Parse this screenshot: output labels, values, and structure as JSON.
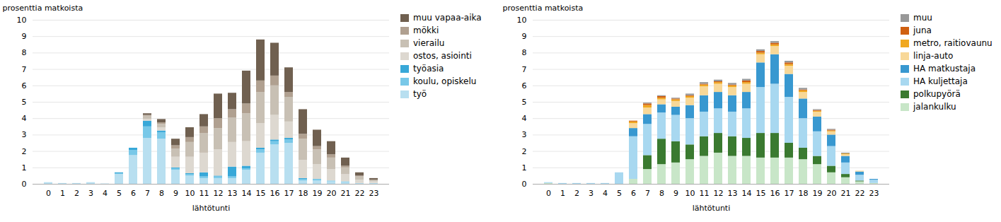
{
  "chart_data": [
    {
      "type": "bar",
      "stacked": true,
      "xlabel": "lähtötunti",
      "ylabel": "prosenttia matkoista",
      "categories": [
        "0",
        "1",
        "2",
        "3",
        "4",
        "5",
        "6",
        "7",
        "8",
        "9",
        "10",
        "11",
        "12",
        "13",
        "14",
        "15",
        "16",
        "17",
        "18",
        "19",
        "20",
        "21",
        "22",
        "23"
      ],
      "series": [
        {
          "name": "työ",
          "color": "#b8dff0",
          "values": [
            0.1,
            0.05,
            0.05,
            0.1,
            0.02,
            0.6,
            1.75,
            2.8,
            2.75,
            0.85,
            0.5,
            0.35,
            0.35,
            0.35,
            0.85,
            1.9,
            2.4,
            2.5,
            0.2,
            0.2,
            0.15,
            0.1,
            0.05,
            0.05
          ]
        },
        {
          "name": "koulu, opiskelu",
          "color": "#78c8e8",
          "values": [
            0.0,
            0.0,
            0.0,
            0.0,
            0.0,
            0.05,
            0.3,
            0.7,
            0.4,
            0.1,
            0.1,
            0.1,
            0.1,
            0.1,
            0.1,
            0.2,
            0.2,
            0.2,
            0.1,
            0.1,
            0.05,
            0.05,
            0.0,
            0.0
          ]
        },
        {
          "name": "työasia",
          "color": "#38a8d8",
          "values": [
            0.0,
            0.0,
            0.0,
            0.0,
            0.0,
            0.05,
            0.15,
            0.35,
            0.1,
            0.05,
            0.05,
            0.25,
            0.05,
            0.6,
            0.15,
            0.1,
            0.1,
            0.1,
            0.05,
            0.0,
            0.0,
            0.0,
            0.0,
            0.0
          ]
        },
        {
          "name": "ostos, asiointi",
          "color": "#ddd8d0",
          "values": [
            0.0,
            0.0,
            0.0,
            0.0,
            0.0,
            0.0,
            0.0,
            0.1,
            0.2,
            0.65,
            1.0,
            1.2,
            1.6,
            1.5,
            1.5,
            1.5,
            1.5,
            1.0,
            1.1,
            0.9,
            0.7,
            0.45,
            0.2,
            0.1
          ]
        },
        {
          "name": "vierailu",
          "color": "#c8c0b4",
          "values": [
            0.0,
            0.0,
            0.0,
            0.0,
            0.0,
            0.0,
            0.0,
            0.2,
            0.2,
            0.5,
            0.9,
            1.2,
            1.3,
            1.5,
            1.7,
            1.9,
            1.8,
            1.5,
            1.3,
            0.9,
            0.7,
            0.4,
            0.2,
            0.1
          ]
        },
        {
          "name": "mökki",
          "color": "#b0a090",
          "values": [
            0.0,
            0.0,
            0.0,
            0.0,
            0.0,
            0.0,
            0.0,
            0.05,
            0.1,
            0.2,
            0.3,
            0.4,
            0.6,
            0.5,
            0.6,
            0.7,
            0.6,
            0.3,
            0.3,
            0.2,
            0.2,
            0.1,
            0.05,
            0.0
          ]
        },
        {
          "name": "muu vapaa-aika",
          "color": "#706050",
          "values": [
            0.0,
            0.0,
            0.0,
            0.0,
            0.0,
            0.0,
            0.0,
            0.1,
            0.2,
            0.4,
            0.6,
            0.75,
            1.5,
            1.0,
            2.0,
            2.5,
            2.0,
            1.5,
            1.5,
            1.0,
            0.8,
            0.5,
            0.2,
            0.1
          ]
        }
      ],
      "ylim": [
        0,
        10
      ],
      "yticks": [
        0,
        1,
        2,
        3,
        4,
        5,
        6,
        7,
        8,
        9,
        10
      ],
      "grid": true,
      "legend": "right"
    },
    {
      "type": "bar",
      "stacked": true,
      "xlabel": "lähtötunti",
      "ylabel": "prosenttia matkoista",
      "categories": [
        "0",
        "1",
        "2",
        "3",
        "4",
        "5",
        "6",
        "7",
        "8",
        "9",
        "10",
        "11",
        "12",
        "13",
        "14",
        "15",
        "16",
        "17",
        "18",
        "19",
        "20",
        "21",
        "22",
        "23"
      ],
      "series": [
        {
          "name": "jalankulku",
          "color": "#c8e6c8",
          "values": [
            0.05,
            0.0,
            0.0,
            0.0,
            0.0,
            0.0,
            0.3,
            0.9,
            1.2,
            1.3,
            1.5,
            1.7,
            1.9,
            1.7,
            1.7,
            1.6,
            1.6,
            1.6,
            1.5,
            1.2,
            0.7,
            0.4,
            0.15,
            0.05
          ]
        },
        {
          "name": "polkupyörä",
          "color": "#3a7a30",
          "values": [
            0.0,
            0.0,
            0.0,
            0.0,
            0.0,
            0.0,
            0.0,
            0.85,
            1.55,
            1.3,
            0.9,
            1.2,
            1.2,
            1.2,
            1.1,
            1.5,
            1.5,
            0.9,
            0.7,
            0.5,
            0.4,
            0.2,
            0.05,
            0.0
          ]
        },
        {
          "name": "HA kuljettaja",
          "color": "#a8d8f0",
          "values": [
            0.05,
            0.05,
            0.05,
            0.05,
            0.05,
            0.7,
            2.6,
            1.9,
            1.6,
            1.6,
            1.6,
            1.5,
            1.5,
            1.5,
            1.8,
            2.8,
            3.0,
            2.8,
            1.8,
            1.5,
            1.2,
            0.7,
            0.35,
            0.2
          ]
        },
        {
          "name": "HA matkustaja",
          "color": "#3898d0",
          "values": [
            0.0,
            0.0,
            0.0,
            0.0,
            0.0,
            0.0,
            0.5,
            0.6,
            0.5,
            0.5,
            0.8,
            1.0,
            1.0,
            1.0,
            1.0,
            1.5,
            1.8,
            1.4,
            1.2,
            0.9,
            0.7,
            0.4,
            0.2,
            0.05
          ]
        },
        {
          "name": "linja-auto",
          "color": "#f8d898",
          "values": [
            0.0,
            0.0,
            0.0,
            0.0,
            0.0,
            0.0,
            0.3,
            0.4,
            0.3,
            0.35,
            0.45,
            0.55,
            0.5,
            0.5,
            0.5,
            0.5,
            0.5,
            0.5,
            0.4,
            0.3,
            0.2,
            0.1,
            0.05,
            0.0
          ]
        },
        {
          "name": "metro, raitiovaunu",
          "color": "#f0a820",
          "values": [
            0.0,
            0.0,
            0.0,
            0.0,
            0.0,
            0.0,
            0.1,
            0.15,
            0.1,
            0.1,
            0.1,
            0.1,
            0.1,
            0.1,
            0.1,
            0.1,
            0.1,
            0.1,
            0.1,
            0.05,
            0.05,
            0.05,
            0.0,
            0.0
          ]
        },
        {
          "name": "juna",
          "color": "#d06010",
          "values": [
            0.0,
            0.0,
            0.0,
            0.0,
            0.0,
            0.0,
            0.05,
            0.1,
            0.1,
            0.05,
            0.05,
            0.05,
            0.05,
            0.05,
            0.1,
            0.1,
            0.1,
            0.1,
            0.05,
            0.05,
            0.05,
            0.0,
            0.0,
            0.0
          ]
        },
        {
          "name": "muu",
          "color": "#989898",
          "values": [
            0.0,
            0.0,
            0.0,
            0.0,
            0.0,
            0.0,
            0.0,
            0.05,
            0.05,
            0.05,
            0.1,
            0.1,
            0.1,
            0.1,
            0.1,
            0.1,
            0.1,
            0.1,
            0.1,
            0.05,
            0.05,
            0.05,
            0.0,
            0.0
          ]
        }
      ],
      "ylim": [
        0,
        10
      ],
      "yticks": [
        0,
        1,
        2,
        3,
        4,
        5,
        6,
        7,
        8,
        9,
        10
      ],
      "grid": true,
      "legend": "right"
    }
  ]
}
